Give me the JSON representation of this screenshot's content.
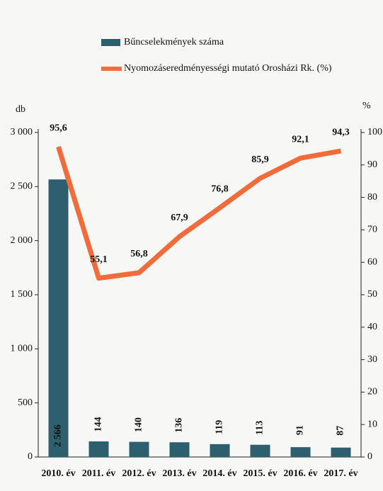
{
  "chart_data": {
    "type": "bar",
    "y_label": "db",
    "y2_label": "%",
    "categories": [
      "2010. év",
      "2011. év",
      "2012. év",
      "2013. év",
      "2014. év",
      "2015. év",
      "2016. év",
      "2017. év"
    ],
    "series": [
      {
        "name": "Bűncselekmények száma",
        "type": "bar",
        "color": "#2e5f6e",
        "values": [
          2566,
          144,
          140,
          136,
          119,
          113,
          91,
          87
        ],
        "value_labels": [
          "2 566",
          "144",
          "140",
          "136",
          "119",
          "113",
          "91",
          "87"
        ]
      },
      {
        "name": "Nyomozáseredményességi mutató Orosházi Rk. (%)",
        "type": "line",
        "axis": "y2",
        "color": "#f26b3a",
        "values": [
          95.6,
          55.1,
          56.8,
          67.9,
          76.8,
          85.9,
          92.1,
          94.3
        ],
        "value_labels": [
          "95,6",
          "55,1",
          "56,8",
          "67,9",
          "76,8",
          "85,9",
          "92,1",
          "94,3"
        ]
      }
    ],
    "ylim": [
      0,
      3000
    ],
    "yticks": [
      0,
      500,
      {
        "value": 1000,
        "label": "1 000"
      },
      {
        "value": 1500,
        "label": "1 500"
      },
      {
        "value": 2000,
        "label": "2 000"
      },
      {
        "value": 2500,
        "label": "2 500"
      },
      {
        "value": 3000,
        "label": "3 000"
      }
    ],
    "y2lim": [
      0,
      100
    ],
    "y2ticks": [
      0,
      10,
      20,
      30,
      40,
      50,
      60,
      70,
      80,
      90,
      100
    ]
  }
}
